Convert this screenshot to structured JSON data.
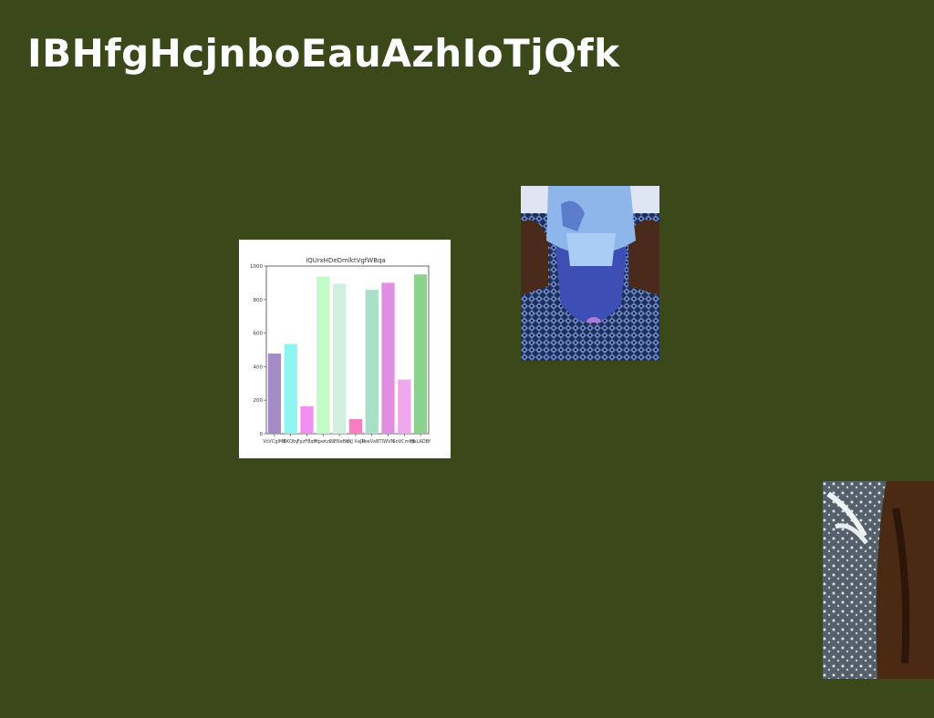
{
  "page": {
    "title": "IBHfgHcjnboEauAzhIoTjQfk",
    "background_color": "#3a481a"
  },
  "images": {
    "portrait_photo": {
      "icon": "photo-portrait-blue-toned"
    },
    "texture_photo": {
      "icon": "photo-texture-dark"
    }
  },
  "chart_data": {
    "type": "bar",
    "title": "lQUrxHDeDmlktVgfWBqa",
    "xlabel": "",
    "ylabel": "",
    "categories": [
      "VcVCgIMK",
      "BKQby",
      "FpzFBqH",
      "HpwtzL",
      "NENeBk",
      "tNJ XaJN",
      "PoeVxBT",
      "lWVN",
      "SoVCmKJL",
      "HsLADBf"
    ],
    "values": [
      478,
      535,
      163,
      938,
      895,
      87,
      858,
      900,
      323,
      950
    ],
    "colors": [
      "#a38bc6",
      "#8ef4f2",
      "#f08ef2",
      "#c3fbc6",
      "#d0efdf",
      "#f77ec1",
      "#a8dfc8",
      "#e08ee0",
      "#f0a8ec",
      "#8dd18f"
    ],
    "ylim": [
      0,
      1000
    ],
    "yticks": [
      0,
      200,
      400,
      600,
      800,
      1000
    ],
    "grid": false
  }
}
